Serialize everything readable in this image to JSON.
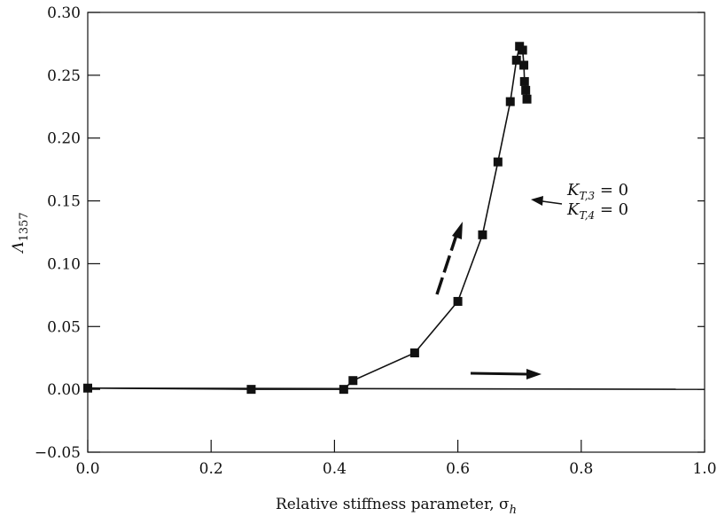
{
  "chart_data": {
    "type": "line",
    "title": "",
    "xlabel": "Relative stiffness parameter, σ",
    "xlabel_subscript": "h",
    "ylabel": "Λ",
    "ylabel_subscript": "1357",
    "xlim": [
      0.0,
      1.0
    ],
    "ylim": [
      -0.05,
      0.3
    ],
    "x_ticks": [
      "0.0",
      "0.2",
      "0.4",
      "0.6",
      "0.8",
      "1.0"
    ],
    "y_ticks": [
      "-0.05",
      "0.00",
      "0.05",
      "0.10",
      "0.15",
      "0.20",
      "0.25",
      "0.30"
    ],
    "grid": false,
    "series": [
      {
        "marker": "square",
        "x": [
          0.0,
          0.265,
          0.415,
          0.43,
          0.53,
          0.6,
          0.64,
          0.665,
          0.685,
          0.695,
          0.7,
          0.705,
          0.707,
          0.708,
          0.71,
          0.712
        ],
        "y": [
          0.001,
          0.0,
          0.0,
          0.007,
          0.029,
          0.07,
          0.123,
          0.181,
          0.229,
          0.262,
          0.273,
          0.27,
          0.258,
          0.245,
          0.238,
          0.231
        ]
      },
      {
        "marker": "square",
        "x": [
          0.0,
          1.0
        ],
        "y": [
          0.001,
          0.0
        ]
      }
    ],
    "annotations": [
      {
        "main": "K",
        "sub": "T,3",
        "rest": " = 0"
      },
      {
        "main": "K",
        "sub": "T,4",
        "rest": " = 0"
      }
    ]
  }
}
